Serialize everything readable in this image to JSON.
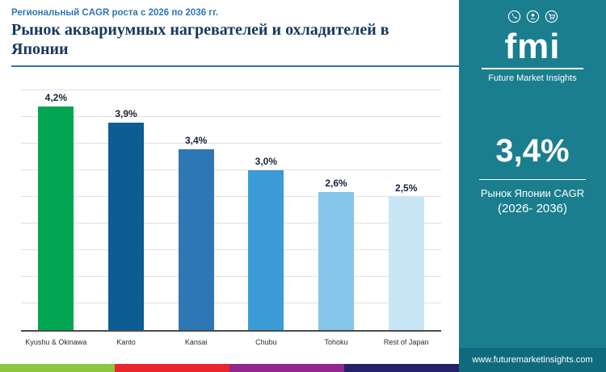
{
  "header": {
    "subtitle": "Региональный CAGR роста с 2026 по 2036 гг.",
    "title": "Рынок аквариумных нагревателей и охладителей в Японии"
  },
  "sidebar": {
    "logo": "fmi",
    "logo_caption": "Future Market Insights",
    "highlight": {
      "value": "3,4%",
      "label_line1": "Рынок Японии CAGR",
      "label_line2": "(2026- 2036)"
    },
    "website": "www.futuremarketinsights.com"
  },
  "chart_data": {
    "type": "bar",
    "title": "Рынок аквариумных нагревателей и охладителей в Японии",
    "subtitle": "Региональный CAGR роста с 2026 по 2036 гг.",
    "categories": [
      "Kyushu & Okinawa",
      "Kanto",
      "Kansai",
      "Chubu",
      "Tohoku",
      "Rest of Japan"
    ],
    "values": [
      4.2,
      3.9,
      3.4,
      3.0,
      2.6,
      2.5
    ],
    "value_labels": [
      "4,2%",
      "3,9%",
      "3,4%",
      "3,0%",
      "2,6%",
      "2,5%"
    ],
    "bar_colors": [
      "#00a651",
      "#0d5d94",
      "#2e77b5",
      "#3c9bd6",
      "#85c6ea",
      "#c9e6f6"
    ],
    "xlabel": "",
    "ylabel": "",
    "ylim": [
      0,
      4.7
    ],
    "grid": true,
    "gridline_step": 0.5,
    "legend": "none"
  },
  "footer_strip_colors": [
    "#8dc63f",
    "#e8262c",
    "#92278f",
    "#24226a"
  ]
}
